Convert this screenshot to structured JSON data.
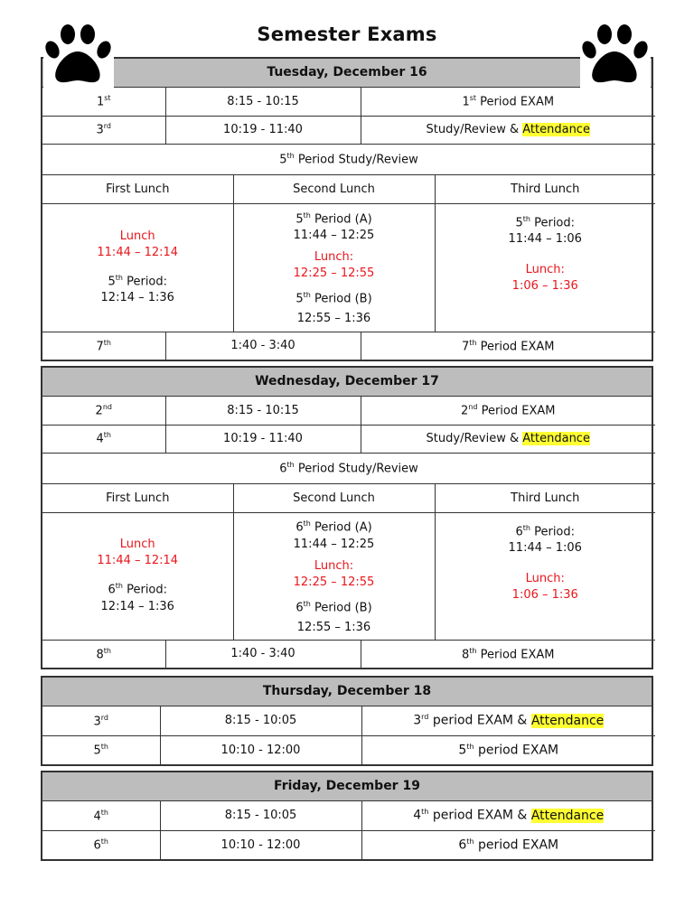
{
  "title": "Semester Exams",
  "icons": {
    "left": "paw-print-icon",
    "right": "paw-print-icon"
  },
  "colors": {
    "header_bg": "#bdbdbd",
    "lunch_text": "#e8161c",
    "highlight": "#ffff33"
  },
  "tue": {
    "header": "Tuesday, December 16",
    "r1": {
      "num": "1",
      "sup": "st",
      "time": "8:15 - 10:15",
      "dnum": "1",
      "dsup": "st",
      "dtext": " Period EXAM"
    },
    "r2": {
      "num": "3",
      "sup": "rd",
      "time": "10:19 - 11:40",
      "dtext": "Study/Review & ",
      "hl": "Attendance"
    },
    "study": {
      "num": "5",
      "sup": "th",
      "text": " Period Study/Review"
    },
    "lunch_headers": [
      "First Lunch",
      "Second Lunch",
      "Third Lunch"
    ],
    "first": {
      "l1": "Lunch",
      "l2": "11:44 – 12:14",
      "pnum": "5",
      "psup": "th",
      "ptext": " Period:",
      "ptime": "12:14 – 1:36"
    },
    "second": {
      "anum": "5",
      "asup": "th",
      "atext": " Period (A)",
      "atime": "11:44 – 12:25",
      "l1": "Lunch:",
      "l2": "12:25 – 12:55",
      "bnum": "5",
      "bsup": "th",
      "btext": " Period (B)",
      "btime": "12:55 – 1:36"
    },
    "third": {
      "pnum": "5",
      "psup": "th",
      "ptext": " Period:",
      "ptime": "11:44 – 1:06",
      "l1": "Lunch:",
      "l2": "1:06 – 1:36"
    },
    "r3": {
      "num": "7",
      "sup": "th",
      "time": "1:40 - 3:40",
      "dnum": "7",
      "dsup": "th",
      "dtext": " Period EXAM"
    }
  },
  "wed": {
    "header": "Wednesday, December 17",
    "r1": {
      "num": "2",
      "sup": "nd",
      "time": "8:15 - 10:15",
      "dnum": "2",
      "dsup": "nd",
      "dtext": " Period EXAM"
    },
    "r2": {
      "num": "4",
      "sup": "th",
      "time": "10:19 - 11:40",
      "dtext": "Study/Review & ",
      "hl": "Attendance"
    },
    "study": {
      "num": "6",
      "sup": "th",
      "text": " Period Study/Review"
    },
    "lunch_headers": [
      "First Lunch",
      "Second Lunch",
      "Third Lunch"
    ],
    "first": {
      "l1": "Lunch",
      "l2": "11:44 – 12:14",
      "pnum": "6",
      "psup": "th",
      "ptext": " Period:",
      "ptime": "12:14 – 1:36"
    },
    "second": {
      "anum": "6",
      "asup": "th",
      "atext": " Period (A)",
      "atime": "11:44 – 12:25",
      "l1": "Lunch:",
      "l2": "12:25 – 12:55",
      "bnum": "6",
      "bsup": "th",
      "btext": " Period (B)",
      "btime": "12:55 – 1:36"
    },
    "third": {
      "pnum": "6",
      "psup": "th",
      "ptext": " Period:",
      "ptime": "11:44 – 1:06",
      "l1": "Lunch:",
      "l2": "1:06 – 1:36"
    },
    "r3": {
      "num": "8",
      "sup": "th",
      "time": "1:40 - 3:40",
      "dnum": "8",
      "dsup": "th",
      "dtext": " Period EXAM"
    }
  },
  "thu": {
    "header": "Thursday, December 18",
    "r1": {
      "num": "3",
      "sup": "rd",
      "time": "8:15 - 10:05",
      "dnum": "3",
      "dsup": "rd",
      "dtext": " period EXAM & ",
      "hl": "Attendance"
    },
    "r2": {
      "num": "5",
      "sup": "th",
      "time": "10:10 - 12:00",
      "dnum": "5",
      "dsup": "th",
      "dtext": " period EXAM"
    }
  },
  "fri": {
    "header": "Friday, December 19",
    "r1": {
      "num": "4",
      "sup": "th",
      "time": "8:15 - 10:05",
      "dnum": "4",
      "dsup": "th",
      "dtext": " period EXAM & ",
      "hl": "Attendance"
    },
    "r2": {
      "num": "6",
      "sup": "th",
      "time": "10:10 - 12:00",
      "dnum": "6",
      "dsup": "th",
      "dtext": " period EXAM"
    }
  }
}
